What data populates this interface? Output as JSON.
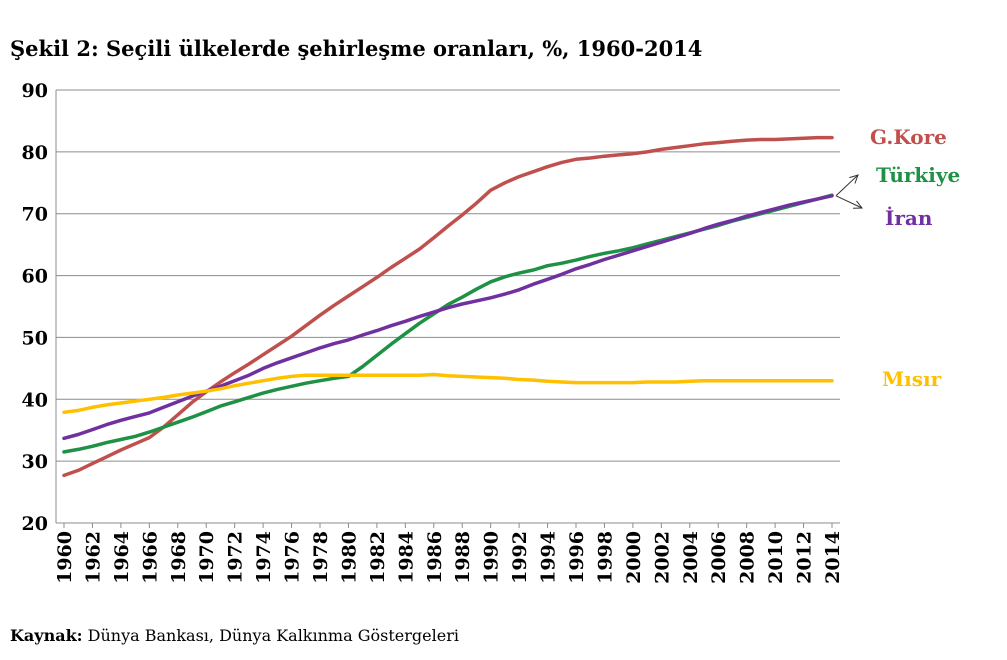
{
  "title": "Şekil 2: Seçili ülkelerde şehirleşme oranları, %, 1960-2014",
  "source": {
    "label": "Kaynak:",
    "text": "Dünya Bankası, Dünya Kalkınma Göstergeleri"
  },
  "chart_data": {
    "type": "line",
    "title": "Şekil 2: Seçili ülkelerde şehirleşme oranları, %, 1960-2014",
    "xlabel": "",
    "ylabel": "",
    "ylim": [
      20,
      90
    ],
    "yticks": [
      20,
      30,
      40,
      50,
      60,
      70,
      80,
      90
    ],
    "xlim": [
      1960,
      2014
    ],
    "xticks": [
      1960,
      1962,
      1964,
      1966,
      1968,
      1970,
      1972,
      1974,
      1976,
      1978,
      1980,
      1982,
      1984,
      1986,
      1988,
      1990,
      1992,
      1994,
      1996,
      1998,
      2000,
      2002,
      2004,
      2006,
      2008,
      2010,
      2012,
      2014
    ],
    "grid": "horizontal",
    "x": [
      1960,
      1961,
      1962,
      1963,
      1964,
      1965,
      1966,
      1967,
      1968,
      1969,
      1970,
      1971,
      1972,
      1973,
      1974,
      1975,
      1976,
      1977,
      1978,
      1979,
      1980,
      1981,
      1982,
      1983,
      1984,
      1985,
      1986,
      1987,
      1988,
      1989,
      1990,
      1991,
      1992,
      1993,
      1994,
      1995,
      1996,
      1997,
      1998,
      1999,
      2000,
      2001,
      2002,
      2003,
      2004,
      2005,
      2006,
      2007,
      2008,
      2009,
      2010,
      2011,
      2012,
      2013,
      2014
    ],
    "series": [
      {
        "name": "G.Kore",
        "color": "#c0504d",
        "values": [
          27.7,
          28.5,
          29.6,
          30.7,
          31.8,
          32.8,
          33.8,
          35.5,
          37.5,
          39.5,
          41.2,
          42.8,
          44.3,
          45.7,
          47.2,
          48.7,
          50.2,
          51.9,
          53.6,
          55.2,
          56.7,
          58.2,
          59.7,
          61.3,
          62.8,
          64.3,
          66.1,
          68.0,
          69.8,
          71.7,
          73.8,
          75.0,
          76.0,
          76.8,
          77.6,
          78.3,
          78.8,
          79.0,
          79.3,
          79.5,
          79.7,
          80.0,
          80.4,
          80.7,
          81.0,
          81.3,
          81.5,
          81.7,
          81.9,
          82.0,
          82.0,
          82.1,
          82.2,
          82.3,
          82.3
        ]
      },
      {
        "name": "Türkiye",
        "color": "#1e9145",
        "values": [
          31.5,
          31.9,
          32.4,
          33.0,
          33.5,
          34.0,
          34.7,
          35.5,
          36.3,
          37.1,
          38.0,
          38.9,
          39.6,
          40.3,
          41.0,
          41.6,
          42.1,
          42.6,
          43.0,
          43.4,
          43.7,
          45.3,
          47.1,
          48.9,
          50.6,
          52.3,
          53.8,
          55.3,
          56.5,
          57.8,
          59.0,
          59.8,
          60.4,
          60.9,
          61.6,
          62.0,
          62.5,
          63.1,
          63.6,
          64.0,
          64.5,
          65.1,
          65.7,
          66.3,
          66.9,
          67.5,
          68.1,
          68.8,
          69.4,
          70.0,
          70.6,
          71.2,
          71.8,
          72.4,
          73.0
        ]
      },
      {
        "name": "İran",
        "color": "#7030a0",
        "values": [
          33.7,
          34.3,
          35.1,
          35.9,
          36.6,
          37.2,
          37.8,
          38.7,
          39.6,
          40.5,
          41.3,
          42.1,
          43.0,
          43.9,
          45.0,
          45.9,
          46.7,
          47.5,
          48.3,
          49.0,
          49.6,
          50.4,
          51.1,
          51.9,
          52.6,
          53.4,
          54.1,
          54.8,
          55.4,
          55.9,
          56.4,
          57.0,
          57.7,
          58.6,
          59.4,
          60.2,
          61.1,
          61.8,
          62.6,
          63.3,
          64.0,
          64.7,
          65.4,
          66.1,
          66.8,
          67.6,
          68.3,
          68.9,
          69.6,
          70.2,
          70.8,
          71.4,
          71.9,
          72.4,
          72.9
        ]
      },
      {
        "name": "Mısır",
        "color": "#ffc000",
        "values": [
          37.9,
          38.2,
          38.7,
          39.1,
          39.4,
          39.7,
          40.0,
          40.3,
          40.7,
          41.0,
          41.3,
          41.7,
          42.2,
          42.6,
          43.0,
          43.4,
          43.7,
          43.9,
          43.9,
          43.9,
          43.9,
          43.9,
          43.9,
          43.9,
          43.9,
          43.9,
          44.0,
          43.8,
          43.7,
          43.6,
          43.5,
          43.4,
          43.2,
          43.1,
          42.9,
          42.8,
          42.7,
          42.7,
          42.7,
          42.7,
          42.7,
          42.8,
          42.8,
          42.8,
          42.9,
          43.0,
          43.0,
          43.0,
          43.0,
          43.0,
          43.0,
          43.0,
          43.0,
          43.0,
          43.0
        ]
      }
    ],
    "labels": [
      {
        "series": "G.Kore",
        "text": "G.Kore",
        "color": "#c0504d"
      },
      {
        "series": "Türkiye",
        "text": "Türkiye",
        "color": "#1e9145"
      },
      {
        "series": "İran",
        "text": "İran",
        "color": "#7030a0"
      },
      {
        "series": "Mısır",
        "text": "Mısır",
        "color": "#ffc000"
      }
    ]
  }
}
